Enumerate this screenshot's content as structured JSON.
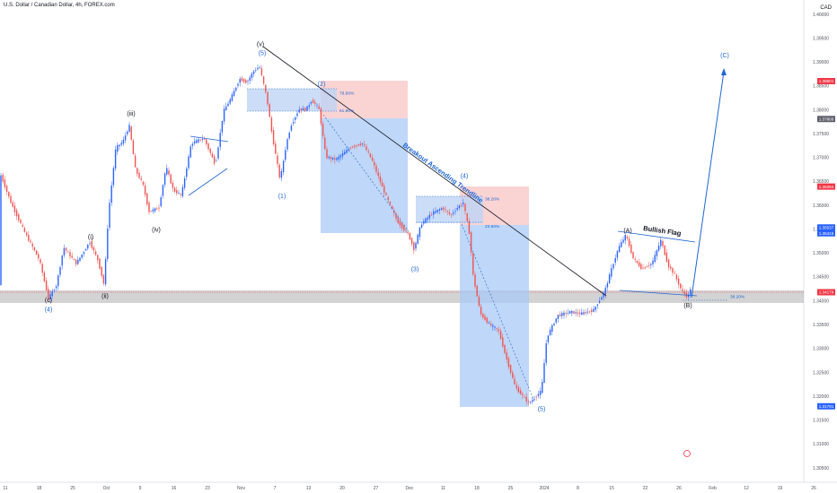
{
  "header": {
    "title": "U.S. Dollar / Canadian Dollar, 4h, FOREX.com",
    "currency": "CAD"
  },
  "colors": {
    "up": "#2962ff",
    "down": "#ef5350",
    "wave_label": "#1e66d2",
    "target_zone": "#f7b5b5",
    "stop_zone": "#a9c9f5",
    "support_band": "#9e9e9e"
  },
  "chart_data": {
    "type": "candlestick",
    "x_ticks": [
      "11",
      "18",
      "25",
      "Oct",
      "9",
      "16",
      "23",
      "Nov",
      "7",
      "13",
      "20",
      "27",
      "Dec",
      "11",
      "18",
      "25",
      "2024",
      "8",
      "15",
      "22",
      "26",
      "Feb",
      "12",
      "19",
      "26"
    ],
    "y_ticks": [
      "1.40000",
      "1.39500",
      "1.39000",
      "1.38500",
      "1.38000",
      "1.37500",
      "1.37000",
      "1.36500",
      "1.36000",
      "1.35500",
      "1.35000",
      "1.34500",
      "1.34000",
      "1.33500",
      "1.33000",
      "1.32500",
      "1.32000",
      "1.31500",
      "1.31000",
      "1.30500"
    ],
    "ylim": [
      1.3035,
      1.4015
    ],
    "price_tags": [
      {
        "label": "1.38601",
        "value": 1.38601,
        "color": "#f23645"
      },
      {
        "label": "1.37809",
        "value": 1.37809,
        "color": "#5d606b"
      },
      {
        "label": "1.36394",
        "value": 1.36394,
        "color": "#f23645"
      },
      {
        "label": "1.35537",
        "value": 1.35537,
        "color": "#2962ff"
      },
      {
        "label": "1.35415",
        "value": 1.35415,
        "color": "#2962ff"
      },
      {
        "label": "1.34179",
        "value": 1.34179,
        "color": "#f23645"
      },
      {
        "label": "1.31791",
        "value": 1.31791,
        "color": "#2962ff"
      }
    ],
    "wave_labels": [
      {
        "text": "(c)",
        "x": 54,
        "y": 1.3397,
        "color": "dark"
      },
      {
        "text": "(4)",
        "x": 54,
        "y": 1.3378,
        "color": "blue"
      },
      {
        "text": "(i)",
        "x": 101,
        "y": 1.353,
        "color": "dark"
      },
      {
        "text": "(ii)",
        "x": 117,
        "y": 1.3406,
        "color": "dark"
      },
      {
        "text": "(iii)",
        "x": 146,
        "y": 1.3788,
        "color": "dark"
      },
      {
        "text": "(iv)",
        "x": 174,
        "y": 1.3545,
        "color": "dark"
      },
      {
        "text": "(v)",
        "x": 290,
        "y": 1.3933,
        "color": "dark"
      },
      {
        "text": "(5)",
        "x": 292,
        "y": 1.3915,
        "color": "blue"
      },
      {
        "text": "(1)",
        "x": 314,
        "y": 1.3615,
        "color": "blue"
      },
      {
        "text": "(2)",
        "x": 358,
        "y": 1.385,
        "color": "blue"
      },
      {
        "text": "(3)",
        "x": 462,
        "y": 1.3462,
        "color": "blue"
      },
      {
        "text": "(4)",
        "x": 517,
        "y": 1.3657,
        "color": "blue"
      },
      {
        "text": "(5)",
        "x": 603,
        "y": 1.3169,
        "color": "blue"
      },
      {
        "text": "(A)",
        "x": 699,
        "y": 1.3543,
        "color": "dark"
      },
      {
        "text": "(B)",
        "x": 766,
        "y": 1.3386,
        "color": "dark"
      },
      {
        "text": "(C)",
        "x": 807,
        "y": 1.391,
        "color": "blue"
      }
    ],
    "fib_labels": [
      {
        "text": "78.60%",
        "x": 378,
        "y": 1.3832
      },
      {
        "text": "61.80%",
        "x": 378,
        "y": 1.3795
      },
      {
        "text": "38.20%",
        "x": 540,
        "y": 1.361
      },
      {
        "text": "23.60%",
        "x": 540,
        "y": 1.3553
      },
      {
        "text": "38.20%",
        "x": 813,
        "y": 1.3406
      }
    ],
    "annotations": [
      {
        "text": "Breakout Ascending Trendline"
      },
      {
        "text": "Bullish Flag"
      }
    ]
  }
}
